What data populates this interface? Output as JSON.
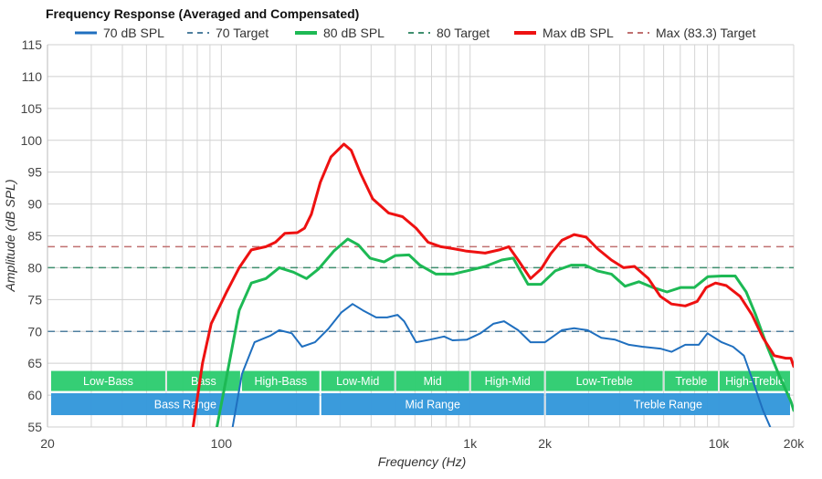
{
  "chart_data": {
    "type": "line",
    "title": "Frequency Response (Averaged and Compensated)",
    "xlabel": "Frequency (Hz)",
    "ylabel": "Amplitude (dB SPL)",
    "xscale": "log",
    "xlim": [
      20,
      20000
    ],
    "ylim": [
      55,
      115
    ],
    "grid": true,
    "legend_placement": "top",
    "x_ticks": [
      {
        "v": 20,
        "label": "20"
      },
      {
        "v": 100,
        "label": "100"
      },
      {
        "v": 1000,
        "label": "1k"
      },
      {
        "v": 2000,
        "label": "2k"
      },
      {
        "v": 10000,
        "label": "10k"
      },
      {
        "v": 20000,
        "label": "20k"
      }
    ],
    "y_ticks": [
      55,
      60,
      65,
      70,
      75,
      80,
      85,
      90,
      95,
      100,
      105,
      110,
      115
    ],
    "series": [
      {
        "name": "70 dB SPL",
        "color": "#1f6fbf",
        "dashed": false,
        "width": 2,
        "points": [
          [
            111,
            55
          ],
          [
            121,
            63.3
          ],
          [
            136,
            68.3
          ],
          [
            157,
            69.3
          ],
          [
            171,
            70.2
          ],
          [
            192,
            69.7
          ],
          [
            211,
            67.6
          ],
          [
            238,
            68.3
          ],
          [
            269,
            70.4
          ],
          [
            304,
            73
          ],
          [
            337,
            74.3
          ],
          [
            371,
            73.3
          ],
          [
            419,
            72.2
          ],
          [
            464,
            72.2
          ],
          [
            511,
            72.6
          ],
          [
            543,
            71.6
          ],
          [
            607,
            68.3
          ],
          [
            689,
            68.7
          ],
          [
            786,
            69.2
          ],
          [
            850,
            68.6
          ],
          [
            970,
            68.7
          ],
          [
            1100,
            69.7
          ],
          [
            1240,
            71.2
          ],
          [
            1370,
            71.6
          ],
          [
            1560,
            70.2
          ],
          [
            1750,
            68.3
          ],
          [
            2000,
            68.3
          ],
          [
            2340,
            70.2
          ],
          [
            2620,
            70.5
          ],
          [
            2970,
            70.2
          ],
          [
            3370,
            69
          ],
          [
            3830,
            68.7
          ],
          [
            4350,
            67.9
          ],
          [
            4920,
            67.6
          ],
          [
            5820,
            67.3
          ],
          [
            6450,
            66.8
          ],
          [
            7330,
            67.9
          ],
          [
            8310,
            67.9
          ],
          [
            9000,
            69.7
          ],
          [
            10260,
            68.3
          ],
          [
            11400,
            67.6
          ],
          [
            12620,
            66.2
          ],
          [
            13800,
            61.9
          ],
          [
            15060,
            57.6
          ],
          [
            16100,
            55
          ]
        ]
      },
      {
        "name": "70 Target",
        "color": "#4f7f9f",
        "dashed": true,
        "width": 1.5,
        "points": [
          [
            20,
            70
          ],
          [
            20000,
            70
          ]
        ]
      },
      {
        "name": "80 dB SPL",
        "color": "#1db954",
        "dashed": false,
        "width": 3,
        "points": [
          [
            96,
            55
          ],
          [
            109,
            66.2
          ],
          [
            118,
            73.3
          ],
          [
            132,
            77.6
          ],
          [
            151,
            78.3
          ],
          [
            171,
            80
          ],
          [
            195,
            79.3
          ],
          [
            220,
            78.3
          ],
          [
            246,
            79.8
          ],
          [
            283,
            82.6
          ],
          [
            322,
            84.5
          ],
          [
            355,
            83.6
          ],
          [
            396,
            81.5
          ],
          [
            451,
            80.9
          ],
          [
            501,
            81.9
          ],
          [
            568,
            82
          ],
          [
            628,
            80.4
          ],
          [
            729,
            79
          ],
          [
            854,
            79
          ],
          [
            970,
            79.5
          ],
          [
            1150,
            80.2
          ],
          [
            1340,
            81.2
          ],
          [
            1490,
            81.5
          ],
          [
            1710,
            77.4
          ],
          [
            1930,
            77.4
          ],
          [
            2200,
            79.5
          ],
          [
            2550,
            80.4
          ],
          [
            2900,
            80.4
          ],
          [
            3250,
            79.5
          ],
          [
            3700,
            79
          ],
          [
            4200,
            77.1
          ],
          [
            4770,
            77.8
          ],
          [
            5430,
            76.9
          ],
          [
            6190,
            76.2
          ],
          [
            7040,
            76.9
          ],
          [
            7980,
            76.9
          ],
          [
            9040,
            78.6
          ],
          [
            10260,
            78.7
          ],
          [
            11640,
            78.7
          ],
          [
            12890,
            76.2
          ],
          [
            14070,
            72.6
          ],
          [
            15660,
            67.6
          ],
          [
            17400,
            63.3
          ],
          [
            19500,
            59
          ],
          [
            20000,
            57.6
          ]
        ]
      },
      {
        "name": "80 Target",
        "color": "#3f8f6f",
        "dashed": true,
        "width": 1.5,
        "points": [
          [
            20,
            80
          ],
          [
            20000,
            80
          ]
        ]
      },
      {
        "name": "Max dB SPL",
        "color": "#ee1111",
        "dashed": false,
        "width": 3,
        "points": [
          [
            77,
            55
          ],
          [
            84,
            65
          ],
          [
            91,
            71.2
          ],
          [
            105,
            76.2
          ],
          [
            118,
            80
          ],
          [
            132,
            82.8
          ],
          [
            151,
            83.3
          ],
          [
            165,
            84
          ],
          [
            180,
            85.4
          ],
          [
            202,
            85.5
          ],
          [
            216,
            86.2
          ],
          [
            230,
            88.4
          ],
          [
            250,
            93.4
          ],
          [
            276,
            97.4
          ],
          [
            311,
            99.4
          ],
          [
            333,
            98.4
          ],
          [
            363,
            94.8
          ],
          [
            406,
            90.8
          ],
          [
            470,
            88.6
          ],
          [
            535,
            88
          ],
          [
            607,
            86.2
          ],
          [
            678,
            84
          ],
          [
            763,
            83.3
          ],
          [
            854,
            83
          ],
          [
            970,
            82.6
          ],
          [
            1150,
            82.3
          ],
          [
            1310,
            82.8
          ],
          [
            1430,
            83.3
          ],
          [
            1560,
            81.2
          ],
          [
            1750,
            78.3
          ],
          [
            1930,
            79.8
          ],
          [
            2110,
            82.2
          ],
          [
            2340,
            84.3
          ],
          [
            2620,
            85.2
          ],
          [
            2930,
            84.8
          ],
          [
            3250,
            83
          ],
          [
            3700,
            81.2
          ],
          [
            4140,
            80
          ],
          [
            4580,
            80.2
          ],
          [
            5210,
            78.3
          ],
          [
            5820,
            75.5
          ],
          [
            6450,
            74.3
          ],
          [
            7330,
            74
          ],
          [
            8180,
            74.7
          ],
          [
            8900,
            76.9
          ],
          [
            9700,
            77.6
          ],
          [
            10720,
            77.2
          ],
          [
            12180,
            75.5
          ],
          [
            13600,
            72.6
          ],
          [
            15060,
            69
          ],
          [
            16700,
            66.2
          ],
          [
            18600,
            65.8
          ],
          [
            19500,
            65.8
          ],
          [
            20000,
            64.5
          ]
        ]
      },
      {
        "name": "Max (83.3) Target",
        "color": "#c07070",
        "dashed": true,
        "width": 1.5,
        "points": [
          [
            20,
            83.3
          ],
          [
            20000,
            83.3
          ]
        ]
      }
    ],
    "bands": [
      {
        "label": "Low-Bass",
        "from": 20,
        "to": 60,
        "row": "sub"
      },
      {
        "label": "Bass",
        "from": 60,
        "to": 120,
        "row": "sub"
      },
      {
        "label": "High-Bass",
        "from": 120,
        "to": 250,
        "row": "sub"
      },
      {
        "label": "Low-Mid",
        "from": 250,
        "to": 500,
        "row": "sub"
      },
      {
        "label": "Mid",
        "from": 500,
        "to": 1000,
        "row": "sub"
      },
      {
        "label": "High-Mid",
        "from": 1000,
        "to": 2000,
        "row": "sub"
      },
      {
        "label": "Low-Treble",
        "from": 2000,
        "to": 6000,
        "row": "sub"
      },
      {
        "label": "Treble",
        "from": 6000,
        "to": 10000,
        "row": "sub"
      },
      {
        "label": "High-Treble",
        "from": 10000,
        "to": 20000,
        "row": "sub"
      },
      {
        "label": "Bass Range",
        "from": 20,
        "to": 250,
        "row": "main"
      },
      {
        "label": "Mid Range",
        "from": 250,
        "to": 2000,
        "row": "main"
      },
      {
        "label": "Treble Range",
        "from": 2000,
        "to": 20000,
        "row": "main"
      }
    ],
    "band_colors": {
      "sub": "#2ecc71",
      "main": "#3498db"
    }
  }
}
